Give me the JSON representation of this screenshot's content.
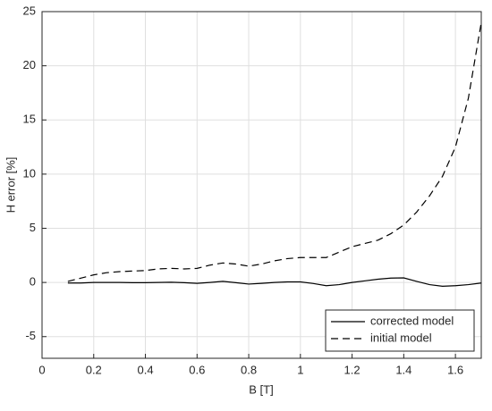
{
  "chart_data": {
    "type": "line",
    "xlabel": "B [T]",
    "ylabel": "H error [%]",
    "x": [
      0.1,
      0.15,
      0.2,
      0.25,
      0.3,
      0.35,
      0.4,
      0.45,
      0.5,
      0.55,
      0.6,
      0.65,
      0.7,
      0.75,
      0.8,
      0.85,
      0.9,
      0.95,
      1.0,
      1.05,
      1.1,
      1.15,
      1.2,
      1.25,
      1.3,
      1.35,
      1.4,
      1.45,
      1.5,
      1.55,
      1.6,
      1.65,
      1.7
    ],
    "series": [
      {
        "name": "corrected model",
        "color": "#000000",
        "dash": "solid",
        "values": [
          -0.05,
          -0.05,
          0,
          0,
          0,
          -0.02,
          -0.02,
          0,
          0.02,
          -0.02,
          -0.08,
          0,
          0.1,
          -0.02,
          -0.15,
          -0.08,
          0,
          0.05,
          0.05,
          -0.1,
          -0.3,
          -0.2,
          0,
          0.15,
          0.3,
          0.4,
          0.42,
          0.1,
          -0.2,
          -0.35,
          -0.3,
          -0.2,
          -0.05
        ]
      },
      {
        "name": "initial model",
        "color": "#000000",
        "dash": "dashed",
        "values": [
          0.1,
          0.4,
          0.7,
          0.9,
          1.0,
          1.05,
          1.1,
          1.25,
          1.3,
          1.25,
          1.3,
          1.6,
          1.8,
          1.7,
          1.5,
          1.7,
          2.0,
          2.2,
          2.3,
          2.3,
          2.3,
          2.8,
          3.3,
          3.6,
          3.9,
          4.5,
          5.3,
          6.5,
          8.0,
          9.8,
          12.5,
          17,
          24
        ]
      }
    ],
    "xlim": [
      0,
      1.7
    ],
    "xticks": [
      0,
      0.2,
      0.4,
      0.6,
      0.8,
      1,
      1.2,
      1.4,
      1.6
    ],
    "ylim": [
      -7,
      25
    ],
    "yticks": [
      -5,
      0,
      5,
      10,
      15,
      20,
      25
    ],
    "grid": true,
    "legend": "bottom-right"
  }
}
